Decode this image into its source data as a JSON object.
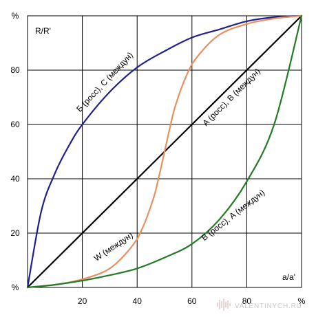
{
  "chart_data": {
    "type": "line",
    "ylabel": "R/R'",
    "xlabel": "a/a'",
    "xlim": [
      0,
      100
    ],
    "ylim": [
      0,
      100
    ],
    "grid": true,
    "x_ticks": [
      {
        "value": 0,
        "label": "%"
      },
      {
        "value": 20,
        "label": "20"
      },
      {
        "value": 40,
        "label": "40"
      },
      {
        "value": 60,
        "label": "60"
      },
      {
        "value": 80,
        "label": "80"
      },
      {
        "value": 100,
        "label": "%"
      }
    ],
    "y_ticks": [
      {
        "value": 0,
        "label": "%"
      },
      {
        "value": 20,
        "label": "20"
      },
      {
        "value": 40,
        "label": "40"
      },
      {
        "value": 60,
        "label": "60"
      },
      {
        "value": 80,
        "label": "80"
      },
      {
        "value": 100,
        "label": "%"
      }
    ],
    "series": [
      {
        "name": "Б (росс), С (междун)",
        "color": "#1f1f8f",
        "x": [
          0,
          5,
          10,
          15,
          20,
          30,
          40,
          50,
          60,
          70,
          80,
          90,
          100
        ],
        "y": [
          0,
          28,
          42,
          52,
          60,
          72,
          81,
          87,
          92,
          95,
          98,
          99.5,
          100
        ]
      },
      {
        "name": "A (росс), B (междун)",
        "color": "#000000",
        "x": [
          0,
          100
        ],
        "y": [
          0,
          100
        ]
      },
      {
        "name": "W (междун)",
        "color": "#e8905f",
        "x": [
          0,
          10,
          20,
          30,
          38,
          42,
          46,
          48,
          50,
          52,
          54,
          58,
          62,
          70,
          80,
          90,
          100
        ],
        "y": [
          0,
          1,
          3,
          7,
          15,
          22,
          33,
          41,
          50,
          59,
          67,
          78,
          85,
          93,
          97,
          99,
          100
        ]
      },
      {
        "name": "В (росс), A (междун)",
        "color": "#247a24",
        "x": [
          0,
          10,
          20,
          30,
          40,
          50,
          60,
          70,
          80,
          90,
          100
        ],
        "y": [
          0,
          1,
          2.5,
          4.5,
          7,
          11,
          16,
          25,
          39,
          60,
          100
        ]
      }
    ]
  },
  "watermark": "VALENTINYCH.RU"
}
